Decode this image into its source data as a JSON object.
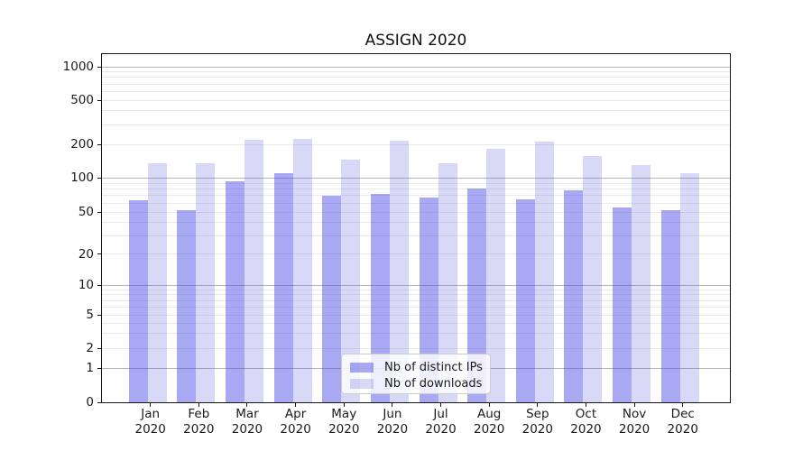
{
  "title": "ASSIGN 2020",
  "chart_data": {
    "type": "bar",
    "title": "ASSIGN 2020",
    "categories": [
      "Jan 2020",
      "Feb 2020",
      "Mar 2020",
      "Apr 2020",
      "May 2020",
      "Jun 2020",
      "Jul 2020",
      "Aug 2020",
      "Sep 2020",
      "Oct 2020",
      "Nov 2020",
      "Dec 2020"
    ],
    "series": [
      {
        "name": "Nb of distinct IPs",
        "values": [
          64,
          52,
          93,
          110,
          70,
          72,
          67,
          80,
          65,
          78,
          55,
          52
        ]
      },
      {
        "name": "Nb of downloads",
        "values": [
          135,
          135,
          220,
          225,
          147,
          215,
          135,
          183,
          210,
          157,
          131,
          111
        ]
      }
    ],
    "xlabel": "",
    "ylabel": "",
    "y_scale": "symlog (log above 1, linear segment 0 to 1)",
    "y_ticks": [
      0,
      1,
      2,
      5,
      10,
      20,
      50,
      100,
      200,
      500,
      1000
    ],
    "ylim": [
      0,
      1300
    ],
    "grid": "horizontal major and minor gridlines",
    "legend_position": "lower center inside plot"
  },
  "axes": {
    "y_tick_labels": [
      "1000",
      "500",
      "200",
      "100",
      "50",
      "20",
      "10",
      "5",
      "2",
      "1",
      "0"
    ],
    "x_months": [
      "Jan",
      "Feb",
      "Mar",
      "Apr",
      "May",
      "Jun",
      "Jul",
      "Aug",
      "Sep",
      "Oct",
      "Nov",
      "Dec"
    ],
    "x_year": "2020"
  },
  "legend": {
    "items": [
      {
        "label": "Nb of distinct IPs"
      },
      {
        "label": "Nb of downloads"
      }
    ]
  },
  "colors": {
    "bar_ips": "rgba(70,70,230,0.47)",
    "bar_downloads": "rgba(77,77,219,0.22)",
    "bar_ips_rendered": "#a8a8f3",
    "bar_downloads_rendered": "#d8d8f7",
    "grid_major": "#b5b5b9",
    "grid_minor": "#e9e9e9",
    "spine": "#15151a",
    "text": "#1a1a1a",
    "legend_bg": "rgba(255,255,255,0.8)",
    "legend_border": "#cccccc"
  }
}
